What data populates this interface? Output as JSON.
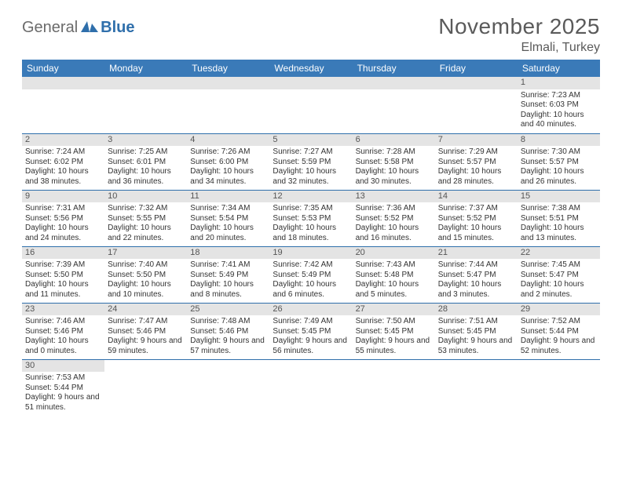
{
  "brand": {
    "general": "General",
    "blue": "Blue"
  },
  "header": {
    "month": "November 2025",
    "location": "Elmali, Turkey"
  },
  "colors": {
    "header_bg": "#3a7ab8",
    "header_text": "#ffffff",
    "daynum_bg": "#e4e4e4",
    "rule": "#2f6fab",
    "title": "#5a5a5a"
  },
  "weekdays": [
    "Sunday",
    "Monday",
    "Tuesday",
    "Wednesday",
    "Thursday",
    "Friday",
    "Saturday"
  ],
  "weeks": [
    [
      null,
      null,
      null,
      null,
      null,
      null,
      {
        "n": "1",
        "sr": "Sunrise: 7:23 AM",
        "ss": "Sunset: 6:03 PM",
        "dl": "Daylight: 10 hours and 40 minutes."
      }
    ],
    [
      {
        "n": "2",
        "sr": "Sunrise: 7:24 AM",
        "ss": "Sunset: 6:02 PM",
        "dl": "Daylight: 10 hours and 38 minutes."
      },
      {
        "n": "3",
        "sr": "Sunrise: 7:25 AM",
        "ss": "Sunset: 6:01 PM",
        "dl": "Daylight: 10 hours and 36 minutes."
      },
      {
        "n": "4",
        "sr": "Sunrise: 7:26 AM",
        "ss": "Sunset: 6:00 PM",
        "dl": "Daylight: 10 hours and 34 minutes."
      },
      {
        "n": "5",
        "sr": "Sunrise: 7:27 AM",
        "ss": "Sunset: 5:59 PM",
        "dl": "Daylight: 10 hours and 32 minutes."
      },
      {
        "n": "6",
        "sr": "Sunrise: 7:28 AM",
        "ss": "Sunset: 5:58 PM",
        "dl": "Daylight: 10 hours and 30 minutes."
      },
      {
        "n": "7",
        "sr": "Sunrise: 7:29 AM",
        "ss": "Sunset: 5:57 PM",
        "dl": "Daylight: 10 hours and 28 minutes."
      },
      {
        "n": "8",
        "sr": "Sunrise: 7:30 AM",
        "ss": "Sunset: 5:57 PM",
        "dl": "Daylight: 10 hours and 26 minutes."
      }
    ],
    [
      {
        "n": "9",
        "sr": "Sunrise: 7:31 AM",
        "ss": "Sunset: 5:56 PM",
        "dl": "Daylight: 10 hours and 24 minutes."
      },
      {
        "n": "10",
        "sr": "Sunrise: 7:32 AM",
        "ss": "Sunset: 5:55 PM",
        "dl": "Daylight: 10 hours and 22 minutes."
      },
      {
        "n": "11",
        "sr": "Sunrise: 7:34 AM",
        "ss": "Sunset: 5:54 PM",
        "dl": "Daylight: 10 hours and 20 minutes."
      },
      {
        "n": "12",
        "sr": "Sunrise: 7:35 AM",
        "ss": "Sunset: 5:53 PM",
        "dl": "Daylight: 10 hours and 18 minutes."
      },
      {
        "n": "13",
        "sr": "Sunrise: 7:36 AM",
        "ss": "Sunset: 5:52 PM",
        "dl": "Daylight: 10 hours and 16 minutes."
      },
      {
        "n": "14",
        "sr": "Sunrise: 7:37 AM",
        "ss": "Sunset: 5:52 PM",
        "dl": "Daylight: 10 hours and 15 minutes."
      },
      {
        "n": "15",
        "sr": "Sunrise: 7:38 AM",
        "ss": "Sunset: 5:51 PM",
        "dl": "Daylight: 10 hours and 13 minutes."
      }
    ],
    [
      {
        "n": "16",
        "sr": "Sunrise: 7:39 AM",
        "ss": "Sunset: 5:50 PM",
        "dl": "Daylight: 10 hours and 11 minutes."
      },
      {
        "n": "17",
        "sr": "Sunrise: 7:40 AM",
        "ss": "Sunset: 5:50 PM",
        "dl": "Daylight: 10 hours and 10 minutes."
      },
      {
        "n": "18",
        "sr": "Sunrise: 7:41 AM",
        "ss": "Sunset: 5:49 PM",
        "dl": "Daylight: 10 hours and 8 minutes."
      },
      {
        "n": "19",
        "sr": "Sunrise: 7:42 AM",
        "ss": "Sunset: 5:49 PM",
        "dl": "Daylight: 10 hours and 6 minutes."
      },
      {
        "n": "20",
        "sr": "Sunrise: 7:43 AM",
        "ss": "Sunset: 5:48 PM",
        "dl": "Daylight: 10 hours and 5 minutes."
      },
      {
        "n": "21",
        "sr": "Sunrise: 7:44 AM",
        "ss": "Sunset: 5:47 PM",
        "dl": "Daylight: 10 hours and 3 minutes."
      },
      {
        "n": "22",
        "sr": "Sunrise: 7:45 AM",
        "ss": "Sunset: 5:47 PM",
        "dl": "Daylight: 10 hours and 2 minutes."
      }
    ],
    [
      {
        "n": "23",
        "sr": "Sunrise: 7:46 AM",
        "ss": "Sunset: 5:46 PM",
        "dl": "Daylight: 10 hours and 0 minutes."
      },
      {
        "n": "24",
        "sr": "Sunrise: 7:47 AM",
        "ss": "Sunset: 5:46 PM",
        "dl": "Daylight: 9 hours and 59 minutes."
      },
      {
        "n": "25",
        "sr": "Sunrise: 7:48 AM",
        "ss": "Sunset: 5:46 PM",
        "dl": "Daylight: 9 hours and 57 minutes."
      },
      {
        "n": "26",
        "sr": "Sunrise: 7:49 AM",
        "ss": "Sunset: 5:45 PM",
        "dl": "Daylight: 9 hours and 56 minutes."
      },
      {
        "n": "27",
        "sr": "Sunrise: 7:50 AM",
        "ss": "Sunset: 5:45 PM",
        "dl": "Daylight: 9 hours and 55 minutes."
      },
      {
        "n": "28",
        "sr": "Sunrise: 7:51 AM",
        "ss": "Sunset: 5:45 PM",
        "dl": "Daylight: 9 hours and 53 minutes."
      },
      {
        "n": "29",
        "sr": "Sunrise: 7:52 AM",
        "ss": "Sunset: 5:44 PM",
        "dl": "Daylight: 9 hours and 52 minutes."
      }
    ],
    [
      {
        "n": "30",
        "sr": "Sunrise: 7:53 AM",
        "ss": "Sunset: 5:44 PM",
        "dl": "Daylight: 9 hours and 51 minutes."
      },
      null,
      null,
      null,
      null,
      null,
      null
    ]
  ]
}
